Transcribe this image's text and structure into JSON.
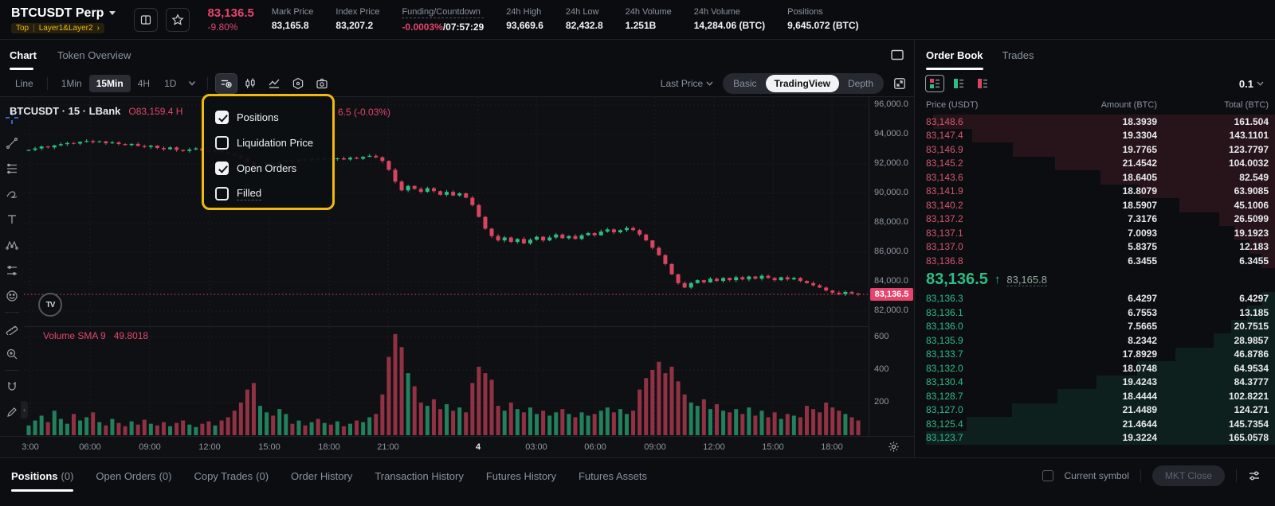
{
  "header": {
    "symbol": "BTCUSDT Perp",
    "tag_top": "Top",
    "tag_layer": "Layer1&Layer2",
    "tag_arrow": "›",
    "last_price": "83,136.5",
    "change_pct": "-9.80%",
    "stats": [
      {
        "label": "Mark Price",
        "value": "83,165.8"
      },
      {
        "label": "Index Price",
        "value": "83,207.2"
      },
      {
        "label": "Funding/Countdown",
        "red": "-0.0003%",
        "value": "/07:57:29",
        "dashed": true
      },
      {
        "label": "24h High",
        "value": "93,669.6"
      },
      {
        "label": "24h Low",
        "value": "82,432.8"
      },
      {
        "label": "24h Volume",
        "value": "1.251B"
      },
      {
        "label": "24h Volume",
        "value": "14,284.06 (BTC)"
      },
      {
        "label": "Positions",
        "value": "9,645.072 (BTC)"
      }
    ]
  },
  "chart_tabs": {
    "chart": "Chart",
    "token_overview": "Token Overview"
  },
  "toolbar": {
    "line_label": "Line",
    "timeframes": [
      "1Min",
      "15Min",
      "4H",
      "1D"
    ],
    "active_timeframe": "15Min",
    "last_price_label": "Last Price",
    "view_modes": [
      "Basic",
      "TradingView",
      "Depth"
    ],
    "active_view_mode": "TradingView"
  },
  "chart_popup": {
    "items": [
      {
        "label": "Positions",
        "checked": true
      },
      {
        "label": "Liquidation Price",
        "checked": false
      },
      {
        "label": "Open Orders",
        "checked": true
      },
      {
        "label": "Filled",
        "checked": false,
        "dashed": true
      }
    ],
    "highlight_color": "#f0b90b"
  },
  "chart_data": {
    "type": "candlestick+volume",
    "legend_symbol": "BTCUSDT · 15 · LBank",
    "legend_ohlc_visible": "O83,159.4 H",
    "legend_change_fragment": "6.5 (-0.03%)",
    "volume_legend": "Volume SMA 9",
    "volume_sma_value": "49.8018",
    "current_price": 83136.5,
    "current_price_label": "83,136.5",
    "y_ticks": [
      {
        "label": "96,000.0",
        "value": 96000
      },
      {
        "label": "94,000.0",
        "value": 94000
      },
      {
        "label": "92,000.0",
        "value": 92000
      },
      {
        "label": "90,000.0",
        "value": 90000
      },
      {
        "label": "88,000.0",
        "value": 88000
      },
      {
        "label": "86,000.0",
        "value": 86000
      },
      {
        "label": "84,000.0",
        "value": 84000
      },
      {
        "label": "82,000.0",
        "value": 82000
      }
    ],
    "volume_ticks": [
      {
        "label": "600",
        "value": 600
      },
      {
        "label": "400",
        "value": 400
      },
      {
        "label": "200",
        "value": 200
      }
    ],
    "x_ticks": [
      {
        "label": "3:00",
        "x": 38
      },
      {
        "label": "06:00",
        "x": 113
      },
      {
        "label": "09:00",
        "x": 188
      },
      {
        "label": "12:00",
        "x": 263
      },
      {
        "label": "15:00",
        "x": 338
      },
      {
        "label": "18:00",
        "x": 413
      },
      {
        "label": "21:00",
        "x": 487
      },
      {
        "label": "4",
        "x": 600,
        "em": true
      },
      {
        "label": "03:00",
        "x": 673
      },
      {
        "label": "06:00",
        "x": 747
      },
      {
        "label": "09:00",
        "x": 822
      },
      {
        "label": "12:00",
        "x": 896
      },
      {
        "label": "15:00",
        "x": 970
      },
      {
        "label": "18:00",
        "x": 1044
      }
    ],
    "up_color": "#2ebd85",
    "down_color": "#d9455f",
    "close": [
      92950,
      93050,
      93180,
      93120,
      93260,
      93340,
      93420,
      93380,
      93500,
      93560,
      93480,
      93530,
      93400,
      93460,
      93350,
      93280,
      93360,
      93220,
      93150,
      93240,
      93080,
      93000,
      93120,
      92950,
      92880,
      92980,
      93050,
      92900,
      92820,
      92930,
      92780,
      92700,
      92580,
      92400,
      92100,
      91750,
      91900,
      92050,
      91850,
      92150,
      92250,
      92180,
      92300,
      92220,
      92350,
      92280,
      92400,
      92320,
      92380,
      92300,
      92420,
      92350,
      92480,
      92550,
      92450,
      92200,
      91600,
      90800,
      90200,
      90500,
      90300,
      90100,
      90350,
      90150,
      89900,
      90100,
      89850,
      90000,
      89700,
      89200,
      88400,
      87600,
      87100,
      86800,
      87000,
      86700,
      86900,
      86600,
      86850,
      87050,
      86800,
      87000,
      87200,
      86950,
      87100,
      86900,
      87150,
      87300,
      87150,
      87400,
      87550,
      87350,
      87500,
      87650,
      87500,
      87200,
      86800,
      86300,
      85800,
      85200,
      84500,
      83900,
      83600,
      83900,
      84100,
      83950,
      84200,
      84050,
      84250,
      84100,
      84300,
      84150,
      84350,
      84200,
      84400,
      84250,
      84100,
      84300,
      84150,
      84250,
      84050,
      83900,
      83750,
      83600,
      83400,
      83250,
      83150,
      83300,
      83200,
      83136.5
    ],
    "volume": [
      60,
      90,
      120,
      80,
      150,
      100,
      70,
      130,
      90,
      110,
      140,
      80,
      60,
      100,
      75,
      55,
      85,
      65,
      95,
      70,
      60,
      80,
      55,
      75,
      90,
      65,
      50,
      70,
      85,
      60,
      90,
      110,
      150,
      200,
      280,
      320,
      180,
      140,
      120,
      160,
      130,
      70,
      90,
      60,
      80,
      100,
      75,
      65,
      85,
      55,
      70,
      90,
      80,
      110,
      130,
      250,
      480,
      620,
      540,
      380,
      300,
      200,
      180,
      220,
      160,
      190,
      150,
      170,
      140,
      320,
      420,
      380,
      340,
      180,
      150,
      200,
      160,
      140,
      170,
      130,
      150,
      120,
      140,
      160,
      130,
      110,
      140,
      120,
      130,
      150,
      170,
      140,
      160,
      130,
      150,
      280,
      350,
      400,
      450,
      380,
      420,
      330,
      250,
      200,
      180,
      220,
      160,
      190,
      150,
      140,
      160,
      130,
      170,
      120,
      150,
      110,
      140,
      100,
      130,
      120,
      110,
      180,
      160,
      140,
      200,
      170,
      150,
      130,
      110,
      90
    ]
  },
  "order_book": {
    "tab_order_book": "Order Book",
    "tab_trades": "Trades",
    "precision": "0.1",
    "columns": [
      "Price (USDT)",
      "Amount (BTC)",
      "Total (BTC)"
    ],
    "asks": [
      {
        "price": "83,148.6",
        "amount": "18.3939",
        "total": "161.504"
      },
      {
        "price": "83,147.4",
        "amount": "19.3304",
        "total": "143.1101"
      },
      {
        "price": "83,146.9",
        "amount": "19.7765",
        "total": "123.7797"
      },
      {
        "price": "83,145.2",
        "amount": "21.4542",
        "total": "104.0032"
      },
      {
        "price": "83,143.6",
        "amount": "18.6405",
        "total": "82.549"
      },
      {
        "price": "83,141.9",
        "amount": "18.8079",
        "total": "63.9085"
      },
      {
        "price": "83,140.2",
        "amount": "18.5907",
        "total": "45.1006"
      },
      {
        "price": "83,137.2",
        "amount": "7.3176",
        "total": "26.5099"
      },
      {
        "price": "83,137.1",
        "amount": "7.0093",
        "total": "19.1923"
      },
      {
        "price": "83,137.0",
        "amount": "5.8375",
        "total": "12.183"
      },
      {
        "price": "83,136.8",
        "amount": "6.3455",
        "total": "6.3455"
      }
    ],
    "mid": {
      "price": "83,136.5",
      "arrow": "↑",
      "mark_price": "83,165.8"
    },
    "bids": [
      {
        "price": "83,136.3",
        "amount": "6.4297",
        "total": "6.4297"
      },
      {
        "price": "83,136.1",
        "amount": "6.7553",
        "total": "13.185"
      },
      {
        "price": "83,136.0",
        "amount": "7.5665",
        "total": "20.7515"
      },
      {
        "price": "83,135.9",
        "amount": "8.2342",
        "total": "28.9857"
      },
      {
        "price": "83,133.7",
        "amount": "17.8929",
        "total": "46.8786"
      },
      {
        "price": "83,132.0",
        "amount": "18.0748",
        "total": "64.9534"
      },
      {
        "price": "83,130.4",
        "amount": "19.4243",
        "total": "84.3777"
      },
      {
        "price": "83,128.7",
        "amount": "18.4444",
        "total": "102.8221"
      },
      {
        "price": "83,127.0",
        "amount": "21.4489",
        "total": "124.271"
      },
      {
        "price": "83,125.4",
        "amount": "21.4644",
        "total": "145.7354"
      },
      {
        "price": "83,123.7",
        "amount": "19.3224",
        "total": "165.0578"
      }
    ]
  },
  "bottom_bar": {
    "tabs": [
      {
        "label": "Positions",
        "count": "(0)",
        "active": true
      },
      {
        "label": "Open Orders",
        "count": "(0)"
      },
      {
        "label": "Copy Trades",
        "count": "(0)"
      },
      {
        "label": "Order History"
      },
      {
        "label": "Transaction History"
      },
      {
        "label": "Futures History"
      },
      {
        "label": "Futures Assets"
      }
    ],
    "current_symbol_label": "Current symbol",
    "mkt_close_label": "MKT Close"
  }
}
